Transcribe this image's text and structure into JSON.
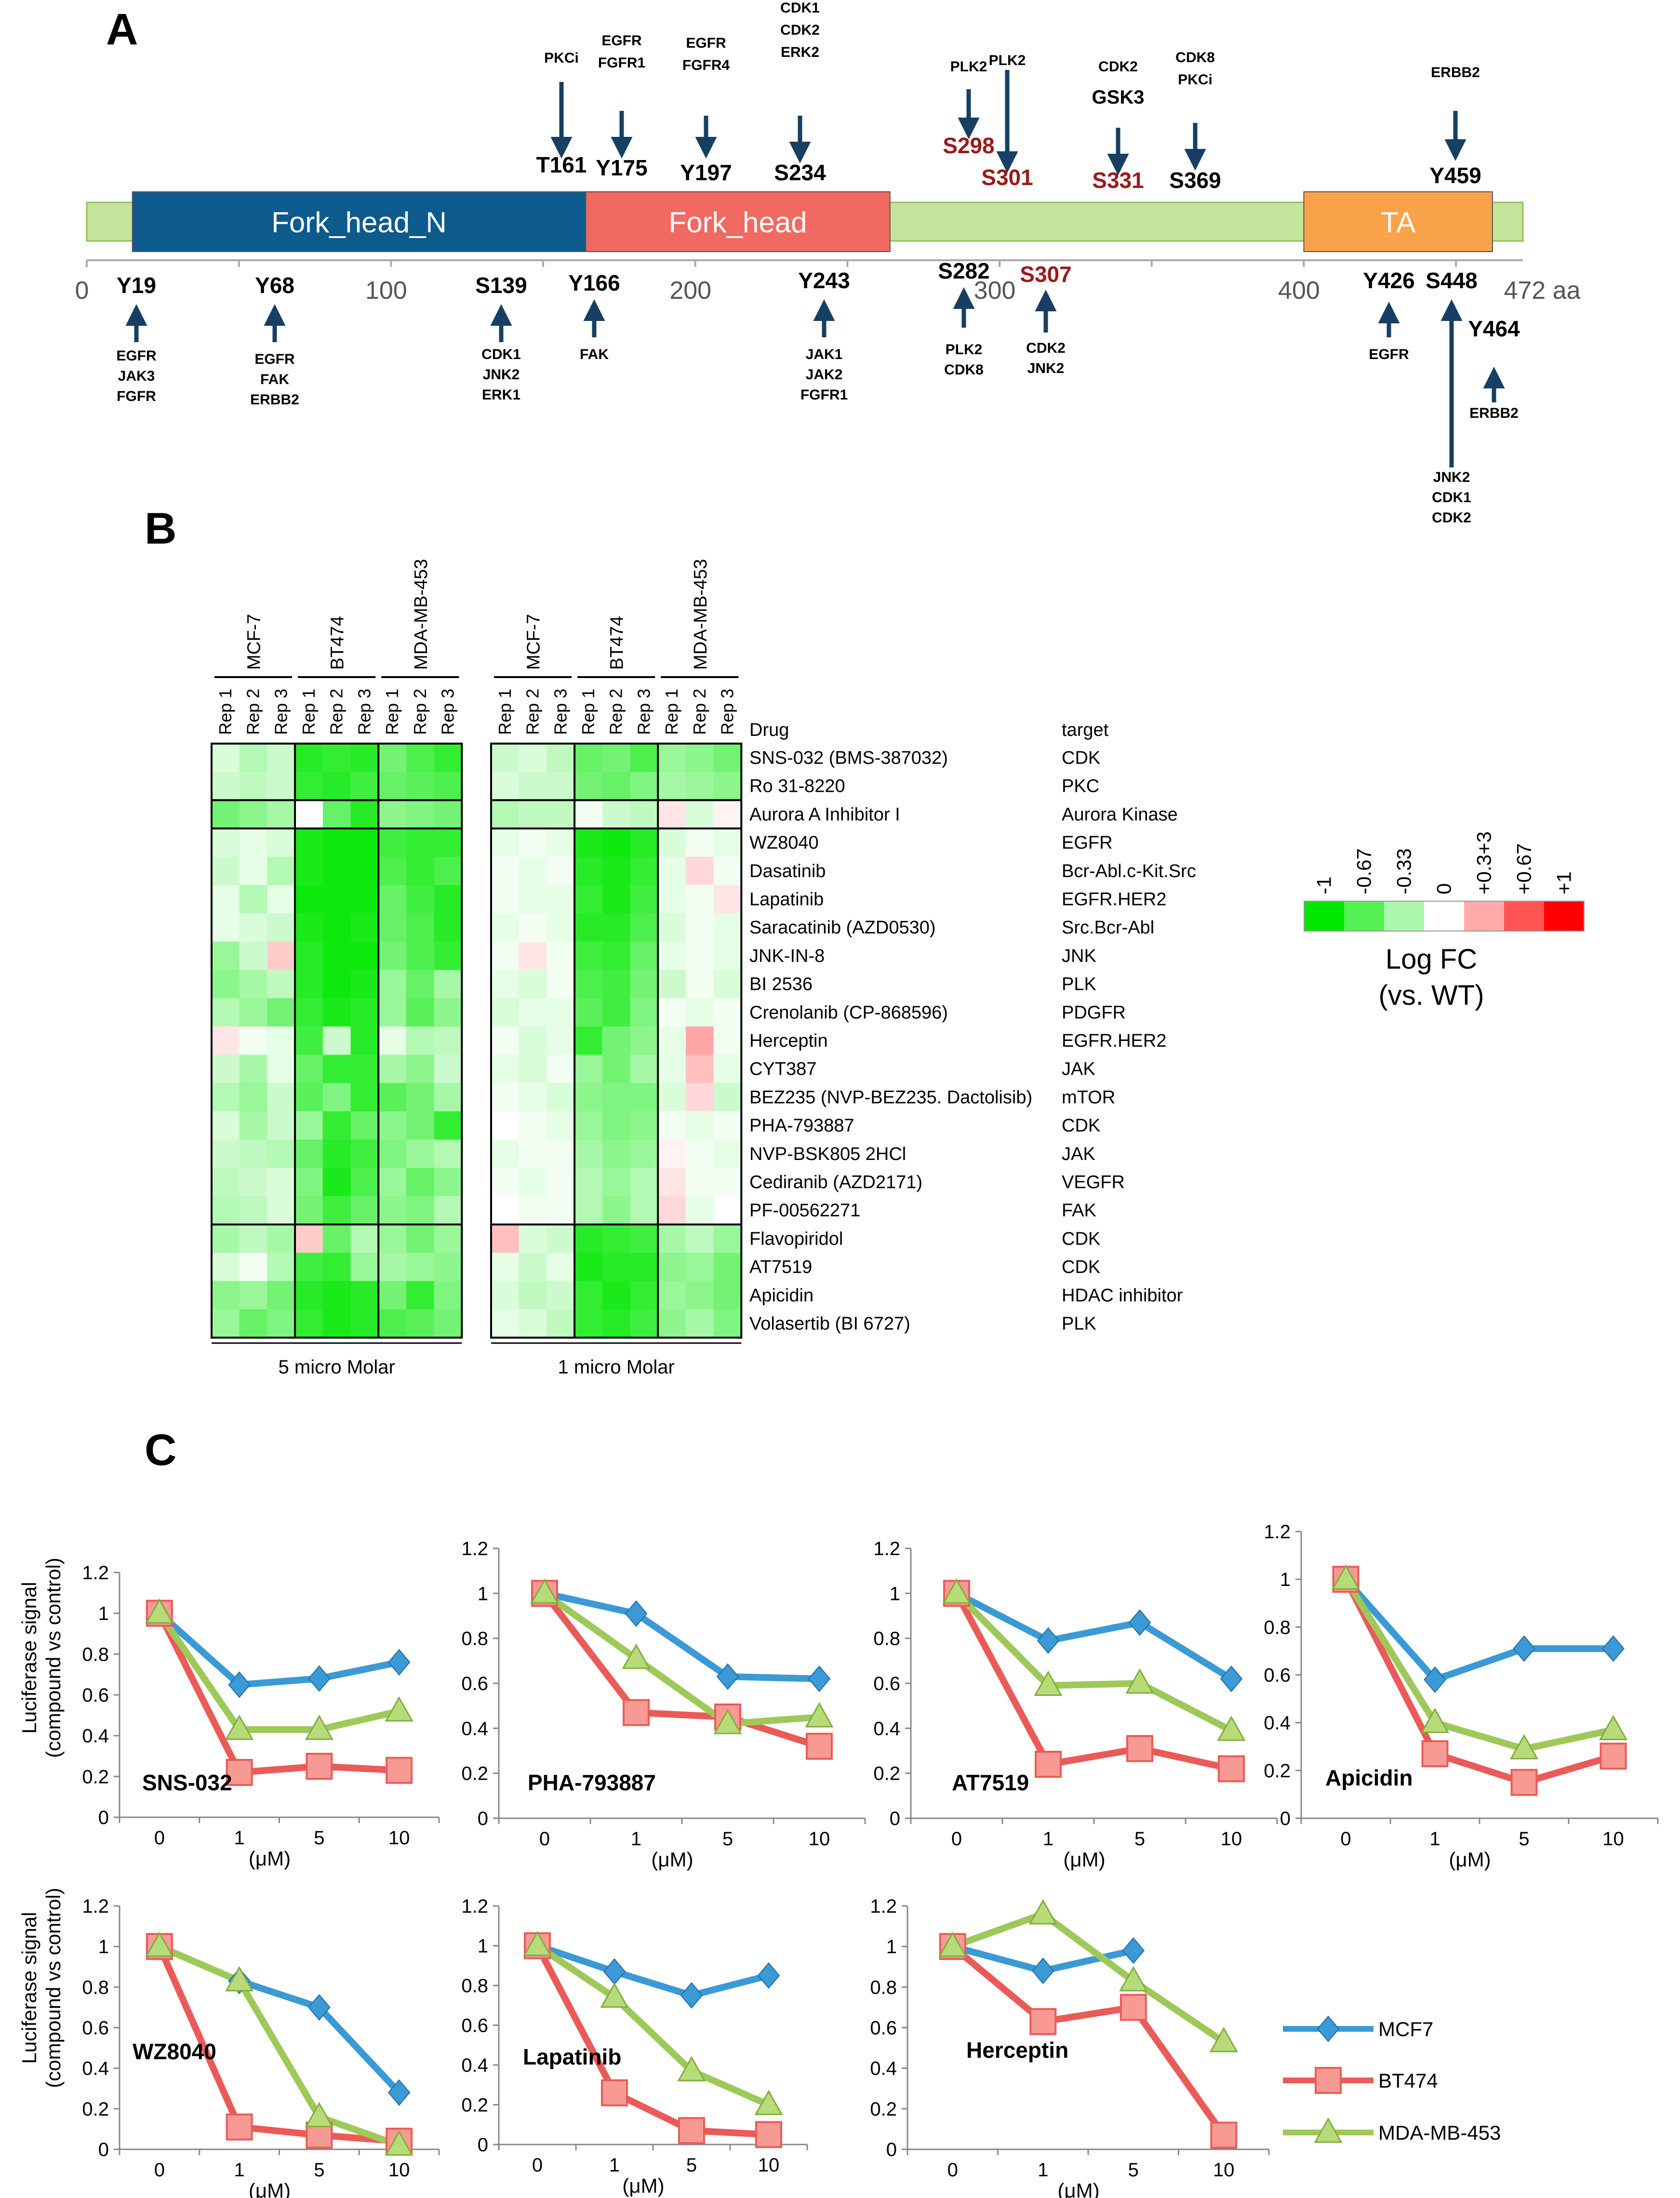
{
  "panel_labels": [
    "A",
    "B",
    "C"
  ],
  "chart_data": [
    {
      "type": "diagram",
      "title": "A",
      "protein_length": "472 aa",
      "axis_ticks": [
        "0",
        "100",
        "200",
        "300",
        "400"
      ],
      "domains": [
        {
          "name": "Fork_head_N",
          "start": 15,
          "end": 164,
          "color": "#0d5a8c"
        },
        {
          "name": "Fork_head",
          "start": 164,
          "end": 264,
          "color": "#f06a62"
        },
        {
          "name": "TA",
          "start": 400,
          "end": 462,
          "color": "#f8a24a"
        }
      ],
      "sites_above": [
        {
          "site": "T161",
          "kinases": [
            "PKCi"
          ],
          "color": "#000000"
        },
        {
          "site": "Y175",
          "kinases": [
            "EGFR",
            "FGFR1"
          ],
          "color": "#000000"
        },
        {
          "site": "Y197",
          "kinases": [
            "EGFR",
            "FGFR4"
          ],
          "color": "#000000"
        },
        {
          "site": "S234",
          "kinases": [
            "CDK1",
            "CDK2",
            "ERK2"
          ],
          "color": "#000000"
        },
        {
          "site": "S298",
          "kinases": [
            "PLK2"
          ],
          "color": "#9b1a1a"
        },
        {
          "site": "S301",
          "kinases": [
            "PLK2"
          ],
          "color": "#9b1a1a"
        },
        {
          "site": "S331",
          "kinases": [
            "CDK2",
            "GSK3"
          ],
          "color": "#9b1a1a"
        },
        {
          "site": "S369",
          "kinases": [
            "CDK8",
            "PKCi"
          ],
          "color": "#000000"
        },
        {
          "site": "Y459",
          "kinases": [
            "ERBB2"
          ],
          "color": "#000000"
        }
      ],
      "sites_below": [
        {
          "site": "Y19",
          "kinases": [
            "EGFR",
            "JAK3",
            "FGFR"
          ],
          "color": "#000000"
        },
        {
          "site": "Y68",
          "kinases": [
            "EGFR",
            "FAK",
            "ERBB2"
          ],
          "color": "#000000"
        },
        {
          "site": "S139",
          "kinases": [
            "CDK1",
            "JNK2",
            "ERK1"
          ],
          "color": "#000000"
        },
        {
          "site": "Y166",
          "kinases": [
            "FAK"
          ],
          "color": "#000000"
        },
        {
          "site": "Y243",
          "kinases": [
            "JAK1",
            "JAK2",
            "FGFR1"
          ],
          "color": "#000000"
        },
        {
          "site": "S282",
          "kinases": [
            "PLK2",
            "CDK8"
          ],
          "color": "#000000"
        },
        {
          "site": "S307",
          "kinases": [
            "CDK2",
            "JNK2"
          ],
          "color": "#9b1a1a"
        },
        {
          "site": "Y426",
          "kinases": [
            "EGFR"
          ],
          "color": "#000000"
        },
        {
          "site": "S448",
          "kinases": [
            "JNK2",
            "CDK1",
            "CDK2"
          ],
          "color": "#000000"
        },
        {
          "site": "Y464",
          "kinases": [
            "ERBB2"
          ],
          "color": "#000000"
        }
      ]
    },
    {
      "type": "heatmap",
      "title": "B",
      "cell_lines": [
        "MCF-7",
        "BT474",
        "MDA-MB-453"
      ],
      "replicates": [
        "Rep 1",
        "Rep 2",
        "Rep 3"
      ],
      "blocks": [
        "5 micro Molar",
        "1 micro Molar"
      ],
      "drug_header": "Drug",
      "target_header": "target",
      "drugs": [
        {
          "drug": "SNS-032 (BMS-387032)",
          "target": "CDK"
        },
        {
          "drug": "Ro 31-8220",
          "target": "PKC"
        },
        {
          "drug": "Aurora A Inhibitor I",
          "target": "Aurora Kinase"
        },
        {
          "drug": "WZ8040",
          "target": "EGFR"
        },
        {
          "drug": "Dasatinib",
          "target": "Bcr-Abl.c-Kit.Src"
        },
        {
          "drug": "Lapatinib",
          "target": "EGFR.HER2"
        },
        {
          "drug": "Saracatinib (AZD0530)",
          "target": "Src.Bcr-Abl"
        },
        {
          "drug": "JNK-IN-8",
          "target": "JNK"
        },
        {
          "drug": "BI 2536",
          "target": "PLK"
        },
        {
          "drug": "Crenolanib (CP-868596)",
          "target": "PDGFR"
        },
        {
          "drug": "Herceptin",
          "target": "EGFR.HER2"
        },
        {
          "drug": "CYT387",
          "target": "JAK"
        },
        {
          "drug": "BEZ235 (NVP-BEZ235. Dactolisib)",
          "target": "mTOR"
        },
        {
          "drug": "PHA-793887",
          "target": "CDK"
        },
        {
          "drug": "NVP-BSK805 2HCl",
          "target": "JAK"
        },
        {
          "drug": "Cediranib (AZD2171)",
          "target": "VEGFR"
        },
        {
          "drug": "PF-00562271",
          "target": "FAK"
        },
        {
          "drug": "Flavopiridol",
          "target": "CDK"
        },
        {
          "drug": "AT7519",
          "target": "CDK"
        },
        {
          "drug": "Apicidin",
          "target": "HDAC inhibitor"
        },
        {
          "drug": "Volasertib (BI 6727)",
          "target": "PLK"
        }
      ],
      "group_breaks_after_row": [
        1,
        2,
        16
      ],
      "values_5uM": [
        [
          -0.15,
          -0.3,
          -0.2,
          -0.85,
          -0.8,
          -0.85,
          -0.55,
          -0.7,
          -0.8
        ],
        [
          -0.2,
          -0.25,
          -0.2,
          -0.8,
          -0.85,
          -0.75,
          -0.6,
          -0.65,
          -0.7
        ],
        [
          -0.55,
          -0.45,
          -0.35,
          0.0,
          -0.6,
          -0.85,
          -0.45,
          -0.5,
          -0.55
        ],
        [
          -0.15,
          -0.1,
          -0.15,
          -0.9,
          -0.95,
          -0.95,
          -0.75,
          -0.8,
          -0.8
        ],
        [
          -0.2,
          -0.1,
          -0.3,
          -0.9,
          -0.95,
          -0.95,
          -0.7,
          -0.8,
          -0.7
        ],
        [
          -0.1,
          -0.3,
          -0.1,
          -0.95,
          -0.95,
          -0.95,
          -0.6,
          -0.75,
          -0.85
        ],
        [
          -0.1,
          -0.15,
          -0.2,
          -0.9,
          -0.95,
          -0.9,
          -0.6,
          -0.7,
          -0.85
        ],
        [
          -0.4,
          -0.2,
          0.2,
          -0.85,
          -0.95,
          -0.95,
          -0.55,
          -0.7,
          -0.8
        ],
        [
          -0.45,
          -0.35,
          -0.25,
          -0.85,
          -0.95,
          -0.9,
          -0.4,
          -0.6,
          -0.35
        ],
        [
          -0.3,
          -0.4,
          -0.55,
          -0.8,
          -0.9,
          -0.85,
          -0.4,
          -0.65,
          -0.45
        ],
        [
          0.1,
          -0.05,
          -0.1,
          -0.75,
          -0.2,
          -0.85,
          -0.1,
          -0.3,
          -0.25
        ],
        [
          -0.2,
          -0.35,
          -0.1,
          -0.6,
          -0.8,
          -0.8,
          -0.35,
          -0.45,
          -0.2
        ],
        [
          -0.3,
          -0.4,
          -0.2,
          -0.65,
          -0.5,
          -0.8,
          -0.65,
          -0.55,
          -0.35
        ],
        [
          -0.15,
          -0.35,
          -0.2,
          -0.4,
          -0.8,
          -0.6,
          -0.45,
          -0.55,
          -0.8
        ],
        [
          -0.2,
          -0.25,
          -0.3,
          -0.6,
          -0.85,
          -0.75,
          -0.5,
          -0.4,
          -0.3
        ],
        [
          -0.25,
          -0.2,
          -0.15,
          -0.5,
          -0.9,
          -0.7,
          -0.4,
          -0.6,
          -0.45
        ],
        [
          -0.3,
          -0.25,
          -0.15,
          -0.55,
          -0.75,
          -0.6,
          -0.45,
          -0.5,
          -0.3
        ],
        [
          -0.35,
          -0.25,
          -0.35,
          0.2,
          -0.6,
          -0.3,
          -0.4,
          -0.55,
          -0.4
        ],
        [
          -0.15,
          -0.05,
          -0.3,
          -0.75,
          -0.8,
          -0.4,
          -0.35,
          -0.4,
          -0.45
        ],
        [
          -0.45,
          -0.4,
          -0.55,
          -0.85,
          -0.9,
          -0.85,
          -0.55,
          -0.8,
          -0.5
        ],
        [
          -0.4,
          -0.6,
          -0.5,
          -0.8,
          -0.9,
          -0.85,
          -0.7,
          -0.65,
          -0.55
        ]
      ],
      "values_1uM": [
        [
          -0.2,
          -0.15,
          -0.25,
          -0.6,
          -0.55,
          -0.7,
          -0.4,
          -0.45,
          -0.55
        ],
        [
          -0.15,
          -0.2,
          -0.2,
          -0.55,
          -0.6,
          -0.5,
          -0.35,
          -0.4,
          -0.45
        ],
        [
          -0.3,
          -0.25,
          -0.25,
          -0.05,
          -0.2,
          -0.25,
          0.1,
          -0.15,
          0.05
        ],
        [
          -0.1,
          -0.05,
          -0.1,
          -0.9,
          -0.95,
          -0.85,
          -0.15,
          -0.05,
          -0.1
        ],
        [
          -0.05,
          -0.1,
          -0.05,
          -0.85,
          -0.9,
          -0.8,
          -0.1,
          0.15,
          -0.05
        ],
        [
          -0.05,
          -0.1,
          -0.1,
          -0.8,
          -0.9,
          -0.75,
          -0.1,
          -0.05,
          0.1
        ],
        [
          -0.1,
          -0.05,
          -0.1,
          -0.85,
          -0.85,
          -0.7,
          -0.15,
          -0.05,
          -0.1
        ],
        [
          -0.05,
          0.1,
          -0.05,
          -0.75,
          -0.8,
          -0.6,
          -0.1,
          -0.05,
          -0.1
        ],
        [
          -0.1,
          -0.15,
          -0.05,
          -0.7,
          -0.75,
          -0.55,
          -0.2,
          -0.05,
          -0.15
        ],
        [
          -0.15,
          -0.1,
          -0.1,
          -0.65,
          -0.75,
          -0.5,
          -0.05,
          -0.1,
          -0.05
        ],
        [
          -0.05,
          -0.15,
          -0.1,
          -0.8,
          -0.55,
          -0.45,
          -0.1,
          0.35,
          -0.05
        ],
        [
          -0.1,
          -0.15,
          -0.05,
          -0.4,
          -0.55,
          -0.35,
          -0.1,
          0.25,
          -0.1
        ],
        [
          -0.05,
          -0.1,
          -0.15,
          -0.45,
          -0.5,
          -0.5,
          -0.15,
          0.15,
          -0.2
        ],
        [
          0.0,
          -0.05,
          -0.1,
          -0.4,
          -0.5,
          -0.45,
          -0.05,
          -0.1,
          -0.05
        ],
        [
          -0.1,
          -0.05,
          -0.05,
          -0.35,
          -0.45,
          -0.4,
          0.05,
          -0.05,
          -0.1
        ],
        [
          -0.05,
          -0.1,
          -0.05,
          -0.3,
          -0.4,
          -0.3,
          0.1,
          -0.05,
          -0.05
        ],
        [
          0.0,
          -0.05,
          -0.05,
          -0.3,
          -0.45,
          -0.3,
          0.15,
          -0.1,
          0.0
        ],
        [
          0.25,
          -0.15,
          -0.2,
          -0.85,
          -0.8,
          -0.75,
          -0.35,
          -0.25,
          -0.4
        ],
        [
          -0.1,
          -0.2,
          -0.1,
          -0.9,
          -0.85,
          -0.85,
          -0.45,
          -0.4,
          -0.55
        ],
        [
          -0.15,
          -0.25,
          -0.2,
          -0.8,
          -0.9,
          -0.8,
          -0.4,
          -0.45,
          -0.55
        ],
        [
          -0.1,
          -0.15,
          -0.25,
          -0.8,
          -0.85,
          -0.75,
          -0.45,
          -0.35,
          -0.5
        ]
      ],
      "legend": {
        "ticks": [
          "-1",
          "-0.67",
          "-0.33",
          "0",
          "+0.3+3",
          "+0.67",
          "+1"
        ],
        "values": [
          -1,
          -0.67,
          -0.33,
          0,
          0.33,
          0.67,
          1
        ],
        "title_line1": "Log FC",
        "title_line2": "(vs. WT)"
      }
    },
    {
      "type": "line",
      "title": "C",
      "ylabel_line1": "Luciferase signal",
      "ylabel_line2": "(compound vs control)",
      "xlabel": "(μM)",
      "categories": [
        "0",
        "1",
        "5",
        "10"
      ],
      "ylim": [
        0,
        1.2
      ],
      "yticks": [
        "0",
        "0.2",
        "0.4",
        "0.6",
        "0.8",
        "1",
        "1.2"
      ],
      "legend": [
        "MCF7",
        "BT474",
        "MDA-MB-453"
      ],
      "series_colors": {
        "MCF7": "#3b9ad6",
        "BT474": "#ea5b58",
        "MDA-MB-453": "#9ec95a"
      },
      "panels": [
        {
          "compound": "SNS-032",
          "series": [
            {
              "name": "MCF7",
              "values": [
                1,
                0.65,
                0.68,
                0.76
              ]
            },
            {
              "name": "BT474",
              "values": [
                1,
                0.22,
                0.25,
                0.23
              ]
            },
            {
              "name": "MDA-MB-453",
              "values": [
                1,
                0.43,
                0.43,
                0.52
              ]
            }
          ]
        },
        {
          "compound": "PHA-793887",
          "series": [
            {
              "name": "MCF7",
              "values": [
                1,
                0.91,
                0.63,
                0.62
              ]
            },
            {
              "name": "BT474",
              "values": [
                1,
                0.47,
                0.45,
                0.32
              ]
            },
            {
              "name": "MDA-MB-453",
              "values": [
                1,
                0.71,
                0.42,
                0.45
              ]
            }
          ]
        },
        {
          "compound": "AT7519",
          "series": [
            {
              "name": "MCF7",
              "values": [
                1,
                0.79,
                0.87,
                0.62
              ]
            },
            {
              "name": "BT474",
              "values": [
                1,
                0.24,
                0.31,
                0.22
              ]
            },
            {
              "name": "MDA-MB-453",
              "values": [
                1,
                0.59,
                0.6,
                0.39
              ]
            }
          ]
        },
        {
          "compound": "Apicidin",
          "series": [
            {
              "name": "MCF7",
              "values": [
                1,
                0.58,
                0.71,
                0.71
              ]
            },
            {
              "name": "BT474",
              "values": [
                1,
                0.27,
                0.15,
                0.26
              ]
            },
            {
              "name": "MDA-MB-453",
              "values": [
                1,
                0.4,
                0.29,
                0.37
              ]
            }
          ]
        },
        {
          "compound": "WZ8040",
          "series": [
            {
              "name": "MCF7",
              "values": [
                1,
                0.83,
                0.7,
                0.28
              ]
            },
            {
              "name": "BT474",
              "values": [
                1,
                0.11,
                0.07,
                0.04
              ]
            },
            {
              "name": "MDA-MB-453",
              "values": [
                1,
                0.83,
                0.16,
                0.02
              ]
            }
          ]
        },
        {
          "compound": "Lapatinib",
          "series": [
            {
              "name": "MCF7",
              "values": [
                1,
                0.87,
                0.75,
                0.85
              ]
            },
            {
              "name": "BT474",
              "values": [
                1,
                0.26,
                0.07,
                0.05
              ]
            },
            {
              "name": "MDA-MB-453",
              "values": [
                1,
                0.74,
                0.37,
                0.2
              ]
            }
          ]
        },
        {
          "compound": "Herceptin",
          "series": [
            {
              "name": "MCF7",
              "values": [
                1,
                0.88,
                0.98,
                null
              ]
            },
            {
              "name": "BT474",
              "values": [
                1,
                0.63,
                0.7,
                0.07
              ]
            },
            {
              "name": "MDA-MB-453",
              "values": [
                1,
                1.16,
                0.83,
                0.53
              ]
            }
          ]
        }
      ]
    }
  ]
}
